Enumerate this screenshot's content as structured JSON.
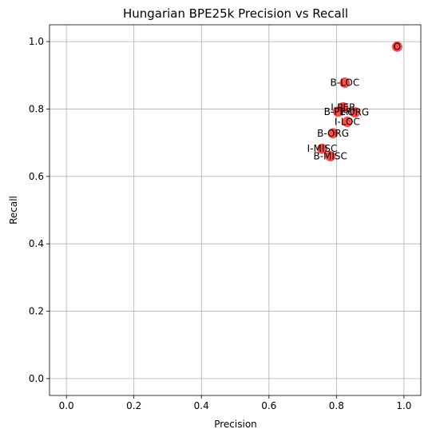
{
  "chart_data": {
    "type": "scatter",
    "title": "Hungarian BPE25k Precision vs Recall",
    "xlabel": "Precision",
    "ylabel": "Recall",
    "xlim": [
      -0.05,
      1.05
    ],
    "ylim": [
      -0.05,
      1.05
    ],
    "xticks": [
      "0.0",
      "0.2",
      "0.4",
      "0.6",
      "0.8",
      "1.0"
    ],
    "yticks": [
      "0.0",
      "0.2",
      "0.4",
      "0.6",
      "0.8",
      "1.0"
    ],
    "grid": true,
    "marker_color": "#ff0000",
    "marker_alpha": 0.7,
    "points": [
      {
        "label": "O",
        "x": 0.98,
        "y": 0.985
      },
      {
        "label": "B-LOC",
        "x": 0.825,
        "y": 0.878
      },
      {
        "label": "I-PER",
        "x": 0.82,
        "y": 0.805
      },
      {
        "label": "B-PER",
        "x": 0.805,
        "y": 0.792
      },
      {
        "label": "I-ORG",
        "x": 0.855,
        "y": 0.79
      },
      {
        "label": "I-LOC",
        "x": 0.832,
        "y": 0.762
      },
      {
        "label": "B-ORG",
        "x": 0.79,
        "y": 0.728
      },
      {
        "label": "I-MISC",
        "x": 0.758,
        "y": 0.682
      },
      {
        "label": "B-MISC",
        "x": 0.782,
        "y": 0.66
      }
    ]
  }
}
